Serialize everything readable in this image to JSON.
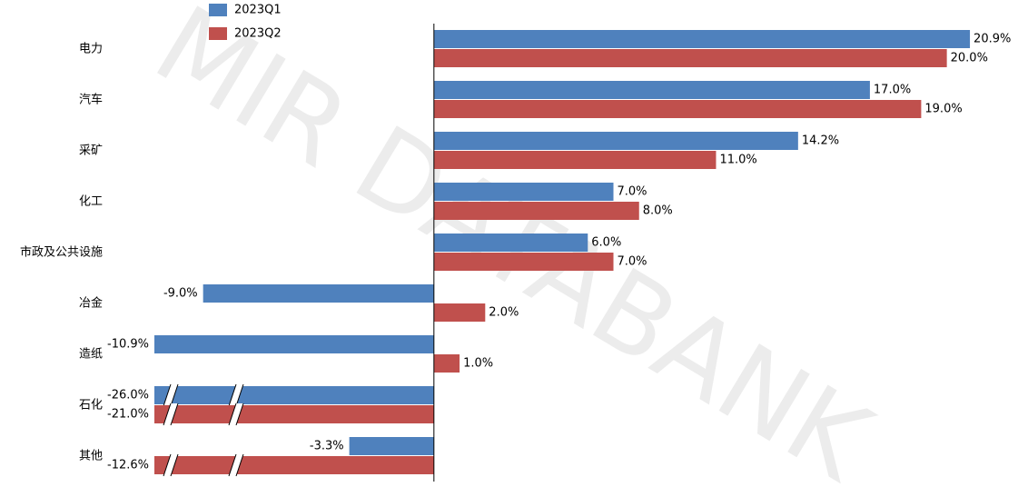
{
  "chart_data": {
    "type": "hbar",
    "watermark": "MIR DATABANK",
    "categories": [
      "电力",
      "汽车",
      "采矿",
      "化工",
      "市政及公共设施",
      "冶金",
      "造纸",
      "石化",
      "其他"
    ],
    "series": [
      {
        "name": "2023Q1",
        "color": "#4f81bd",
        "values": [
          20.9,
          17.0,
          14.2,
          7.0,
          6.0,
          -9.0,
          -10.9,
          -26.0,
          -3.3
        ],
        "value_labels": [
          "20.9%",
          "17.0%",
          "14.2%",
          "7.0%",
          "6.0%",
          "-9.0%",
          "-10.9%",
          "-26.0%",
          "-3.3%"
        ]
      },
      {
        "name": "2023Q2",
        "color": "#c0504d",
        "values": [
          20.0,
          19.0,
          11.0,
          8.0,
          7.0,
          2.0,
          1.0,
          -21.0,
          -12.6
        ],
        "value_labels": [
          "20.0%",
          "19.0%",
          "11.0%",
          "8.0%",
          "7.0%",
          "2.0%",
          "1.0%",
          "-21.0%",
          "-12.6%"
        ]
      }
    ],
    "xlim": [
      -10.9,
      21.5
    ],
    "legend": "top-left"
  }
}
